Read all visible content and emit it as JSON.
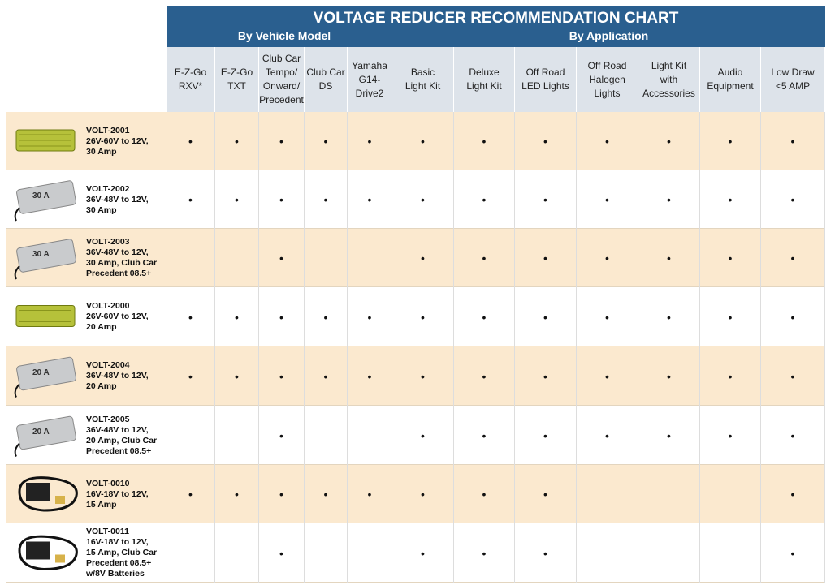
{
  "header": {
    "title": "VOLTAGE REDUCER RECOMMENDATION CHART",
    "groups": [
      "By Vehicle Model",
      "By Application"
    ]
  },
  "columns": [
    [
      "E-Z-Go",
      "RXV*"
    ],
    [
      "E-Z-Go",
      "TXT"
    ],
    [
      "Club Car",
      "Tempo/",
      "Onward/",
      "Precedent"
    ],
    [
      "Club Car",
      "DS"
    ],
    [
      "Yamaha",
      "G14-",
      "Drive2"
    ],
    [
      "Basic",
      "Light Kit"
    ],
    [
      "Deluxe",
      "Light Kit"
    ],
    [
      "Off Road",
      "LED Lights"
    ],
    [
      "Off Road",
      "Halogen",
      "Lights"
    ],
    [
      "Light Kit",
      "with",
      "Accessories"
    ],
    [
      "Audio",
      "Equipment"
    ],
    [
      "Low Draw",
      "<5 AMP"
    ]
  ],
  "rows": [
    {
      "product": [
        "VOLT-2001",
        "26V-60V to 12V,",
        "30 Amp"
      ],
      "cells": [
        "•",
        "•",
        "•",
        "•",
        "•",
        "•",
        "•",
        "•",
        "•",
        "•",
        "•",
        "•"
      ]
    },
    {
      "product": [
        "VOLT-2002",
        "36V-48V to 12V,",
        "30 Amp"
      ],
      "image_label": "30 A",
      "cells": [
        "•",
        "•",
        "•",
        "•",
        "•",
        "•",
        "•",
        "•",
        "•",
        "•",
        "•",
        "•"
      ]
    },
    {
      "product": [
        "VOLT-2003",
        "36V-48V to 12V,",
        "30 Amp, Club Car",
        "Precedent 08.5+"
      ],
      "image_label": "30 A",
      "cells": [
        null,
        null,
        "•",
        null,
        null,
        "•",
        "•",
        "•",
        "•",
        "•",
        "•",
        "•"
      ]
    },
    {
      "product": [
        "VOLT-2000",
        "26V-60V to 12V,",
        "20 Amp"
      ],
      "cells": [
        "•",
        "•",
        "•",
        "•",
        "•",
        "•",
        "•",
        "•",
        "•",
        "•",
        "•",
        "•"
      ]
    },
    {
      "product": [
        "VOLT-2004",
        "36V-48V to 12V,",
        "20 Amp"
      ],
      "image_label": "20 A",
      "cells": [
        "•",
        "•",
        "•",
        "•",
        "•",
        "•",
        "•",
        "•",
        "•",
        "•",
        "•",
        "•"
      ]
    },
    {
      "product": [
        "VOLT-2005",
        "36V-48V to 12V,",
        "20 Amp, Club Car",
        "Precedent 08.5+"
      ],
      "image_label": "20 A",
      "cells": [
        null,
        null,
        "•",
        null,
        null,
        "•",
        "•",
        "•",
        "•",
        "•",
        "•",
        "•"
      ]
    },
    {
      "product": [
        "VOLT-0010",
        "16V-18V to 12V,",
        "15 Amp"
      ],
      "cells": [
        "•",
        "•",
        "•",
        "•",
        "•",
        "•",
        "•",
        "•",
        null,
        null,
        null,
        "•"
      ]
    },
    {
      "product": [
        "VOLT-0011",
        "16V-18V to 12V,",
        "15 Amp, Club Car",
        "Precedent 08.5+",
        "w/8V Batteries"
      ],
      "cells": [
        null,
        null,
        "•",
        null,
        null,
        "•",
        "•",
        "•",
        null,
        null,
        null,
        "•"
      ]
    }
  ]
}
